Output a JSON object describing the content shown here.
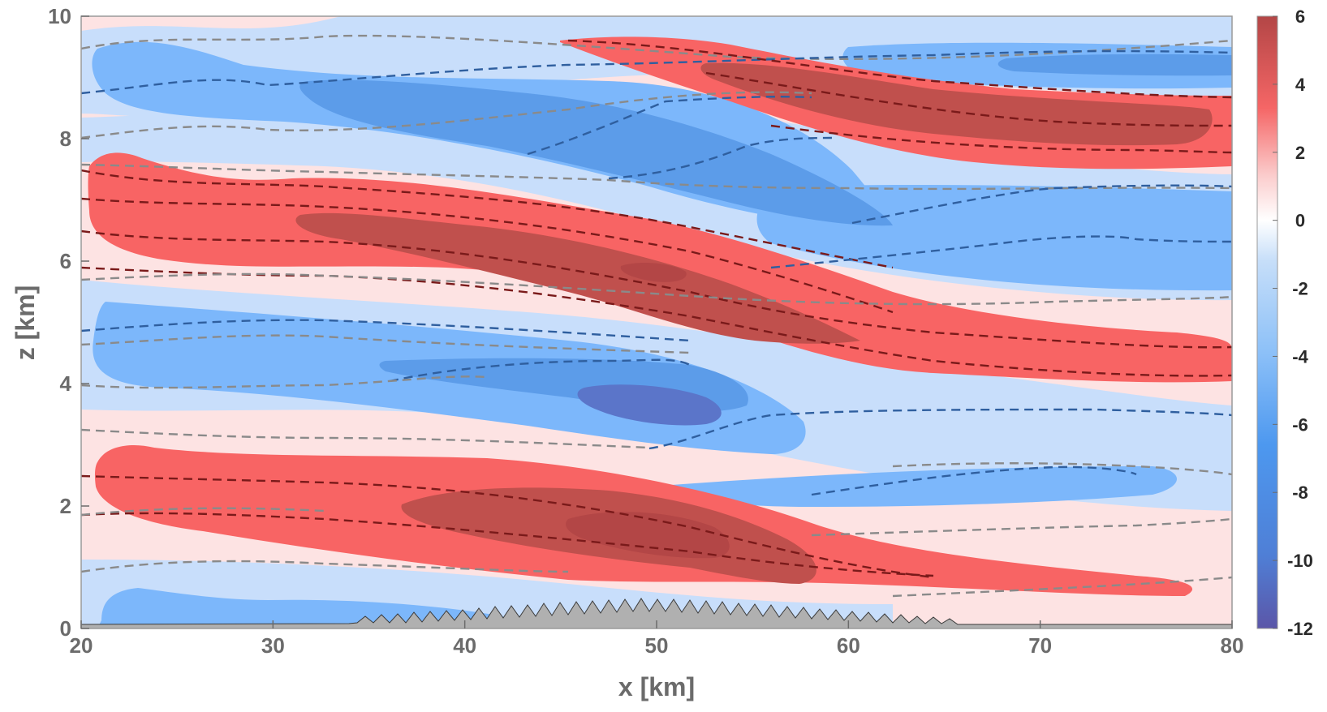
{
  "chart_data": {
    "type": "filled-contour",
    "title": "",
    "xlabel": "x [km]",
    "ylabel": "z [km]",
    "xlim": [
      20,
      80
    ],
    "ylim": [
      0,
      10
    ],
    "x_ticks": [
      20,
      30,
      40,
      50,
      60,
      70,
      80
    ],
    "y_ticks": [
      0,
      2,
      4,
      6,
      8,
      10
    ],
    "colorbar": {
      "range": [
        -12,
        6
      ],
      "ticks": [
        6,
        4,
        2,
        0,
        -2,
        -4,
        -6,
        -8,
        -10,
        -12
      ],
      "colors": [
        "#5b56a8",
        "#4f7fd6",
        "#4d98ef",
        "#6fb1f7",
        "#9bc9f9",
        "#c6def9",
        "#fde5e5",
        "#fbaaa9",
        "#f56666",
        "#c05555",
        "#b34646"
      ]
    },
    "fill_levels": {
      "red_strong": "#c0504d",
      "red": "#f86464",
      "pink": "#fde3e3",
      "blue_light": "#c8defb",
      "blue": "#7cb7fb",
      "blue_mid": "#5c9ce9",
      "blue_dark": "#5b75c9"
    },
    "terrain": {
      "x_range_km": [
        34,
        66
      ],
      "peak_height_km": 0.5,
      "color": "#b0b0b0"
    },
    "contour_lines": {
      "style": "dashed",
      "colors": [
        "#7f7f7f",
        "#8b1a1a",
        "#1f4f8f"
      ],
      "levels_count": 14
    }
  }
}
